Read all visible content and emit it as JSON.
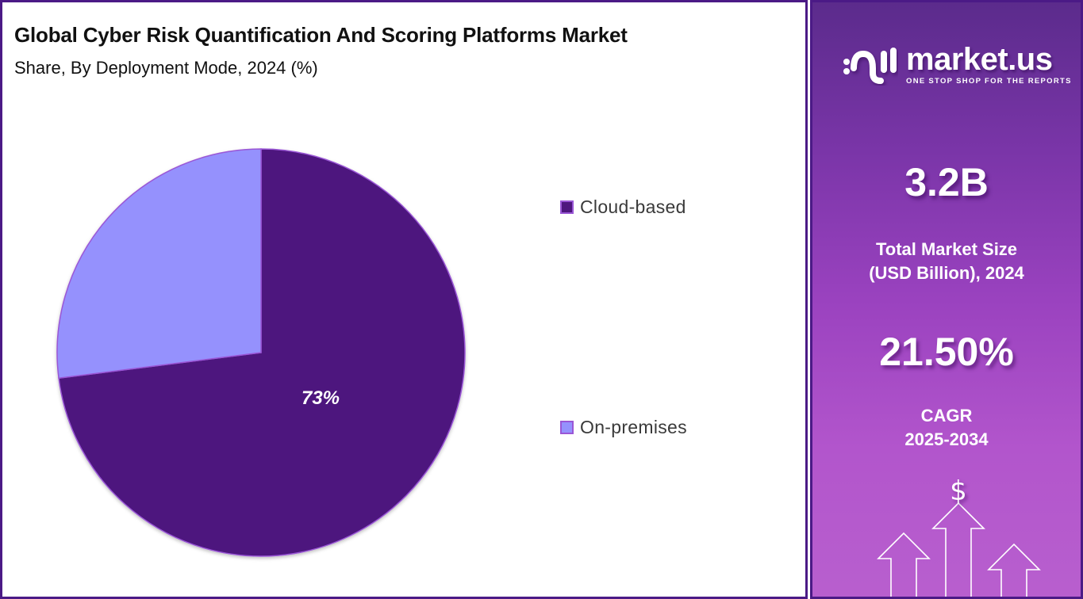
{
  "header": {
    "title": "Global Cyber Risk Quantification And Scoring Platforms Market",
    "subtitle": "Share, By Deployment Mode, 2024 (%)"
  },
  "chart_data": {
    "type": "pie",
    "title": "Global Cyber Risk Quantification And Scoring Platforms Market",
    "subtitle": "Share, By Deployment Mode, 2024 (%)",
    "categories": [
      "Cloud-based",
      "On-premises"
    ],
    "values": [
      73,
      27
    ],
    "data_labels": [
      "73%",
      ""
    ],
    "colors": [
      "#4e177e",
      "#9591fd"
    ],
    "legend_position": "right",
    "start_angle_deg": 0,
    "direction": "clockwise"
  },
  "pie": {
    "label_main": "73%"
  },
  "legend": {
    "items": [
      {
        "label": "Cloud-based",
        "color": "#4e177e"
      },
      {
        "label": "On-premises",
        "color": "#9591fd"
      }
    ]
  },
  "sidebar": {
    "brand_name": "market.us",
    "brand_tagline": "ONE STOP SHOP FOR THE REPORTS",
    "market_size_value": "3.2B",
    "market_size_label_line1": "Total Market Size",
    "market_size_label_line2": "(USD Billion), 2024",
    "cagr_value": "21.50%",
    "cagr_label_line1": "CAGR",
    "cagr_label_line2": "2025-2034",
    "currency_symbol": "$"
  }
}
